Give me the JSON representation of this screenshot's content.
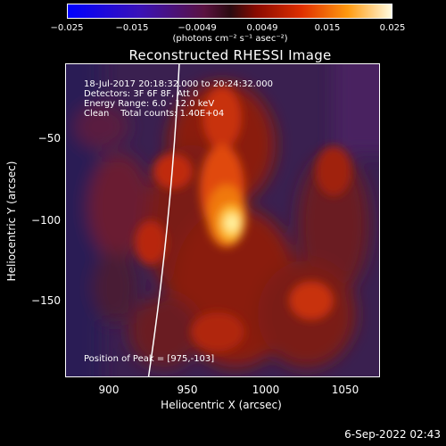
{
  "colorbar": {
    "ticks": [
      "−0.025",
      "−0.015",
      "−0.0049",
      "0.0049",
      "0.015",
      "0.025"
    ],
    "unit": "(photons cm⁻² s⁻¹ asec⁻²)"
  },
  "title": "Reconstructed RHESSI Image",
  "info": {
    "line1": "18-Jul-2017 20:18:32.000 to 20:24:32.000",
    "line2": "Detectors: 3F 6F 8F, Att 0",
    "line3": "Energy Range: 6.0 - 12.0 keV",
    "line4": "Clean    Total counts: 1.40E+04",
    "peak": "Position of Peak = [975,-103]"
  },
  "axes": {
    "xlabel": "Heliocentric X (arcsec)",
    "ylabel": "Heliocentric Y (arcsec)",
    "xticks": [
      "900",
      "950",
      "1000",
      "1050"
    ],
    "yticks": [
      "−50",
      "−100",
      "−150"
    ]
  },
  "timestamp": "6-Sep-2022 02:43",
  "colors": {
    "background": "#000000",
    "limb": "#ffffff"
  }
}
